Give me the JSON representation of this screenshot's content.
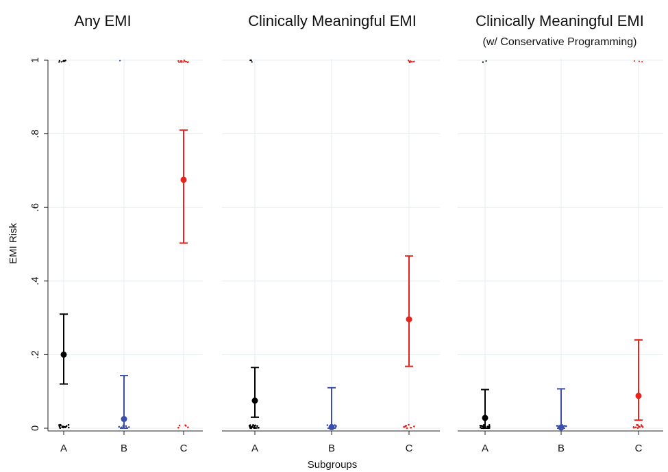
{
  "chart_data": {
    "type": "scatter",
    "ylabel": "EMI Risk",
    "xlabel": "Subgroups",
    "ylim": [
      0,
      1
    ],
    "yticks": [
      {
        "value": 0,
        "label": "0"
      },
      {
        "value": 0.2,
        "label": ".2"
      },
      {
        "value": 0.4,
        "label": ".4"
      },
      {
        "value": 0.6,
        "label": ".6"
      },
      {
        "value": 0.8,
        "label": ".8"
      },
      {
        "value": 1,
        "label": "1"
      }
    ],
    "categories": [
      "A",
      "B",
      "C"
    ],
    "colors": {
      "A": "#000000",
      "B": "#3b4fa8",
      "C": "#e8231e"
    },
    "grid": true,
    "panels": [
      {
        "title": "Any EMI",
        "subtitle": "",
        "estimates": [
          {
            "category": "A",
            "point": 0.2,
            "lower": 0.12,
            "upper": 0.31
          },
          {
            "category": "B",
            "point": 0.025,
            "lower": 0.0,
            "upper": 0.143
          },
          {
            "category": "C",
            "point": 0.675,
            "lower": 0.503,
            "upper": 0.81
          }
        ],
        "raw_at_one": {
          "A": 10,
          "B": 1,
          "C": 14
        },
        "raw_at_zero": {
          "A": 16,
          "B": 9,
          "C": 5
        }
      },
      {
        "title": "Clinically Meaningful EMI",
        "subtitle": "",
        "estimates": [
          {
            "category": "A",
            "point": 0.075,
            "lower": 0.03,
            "upper": 0.165
          },
          {
            "category": "B",
            "point": 0.003,
            "lower": 0.0,
            "upper": 0.11
          },
          {
            "category": "C",
            "point": 0.296,
            "lower": 0.168,
            "upper": 0.468
          }
        ],
        "raw_at_one": {
          "A": 3,
          "B": 0,
          "C": 8
        },
        "raw_at_zero": {
          "A": 20,
          "B": 10,
          "C": 10
        }
      },
      {
        "title": "Clinically Meaningful EMI",
        "subtitle": "(w/ Conservative Programming)",
        "estimates": [
          {
            "category": "A",
            "point": 0.028,
            "lower": 0.0,
            "upper": 0.105
          },
          {
            "category": "B",
            "point": 0.002,
            "lower": 0.0,
            "upper": 0.107
          },
          {
            "category": "C",
            "point": 0.088,
            "lower": 0.022,
            "upper": 0.24
          }
        ],
        "raw_at_one": {
          "A": 2,
          "B": 0,
          "C": 3
        },
        "raw_at_zero": {
          "A": 22,
          "B": 10,
          "C": 12
        }
      }
    ]
  }
}
